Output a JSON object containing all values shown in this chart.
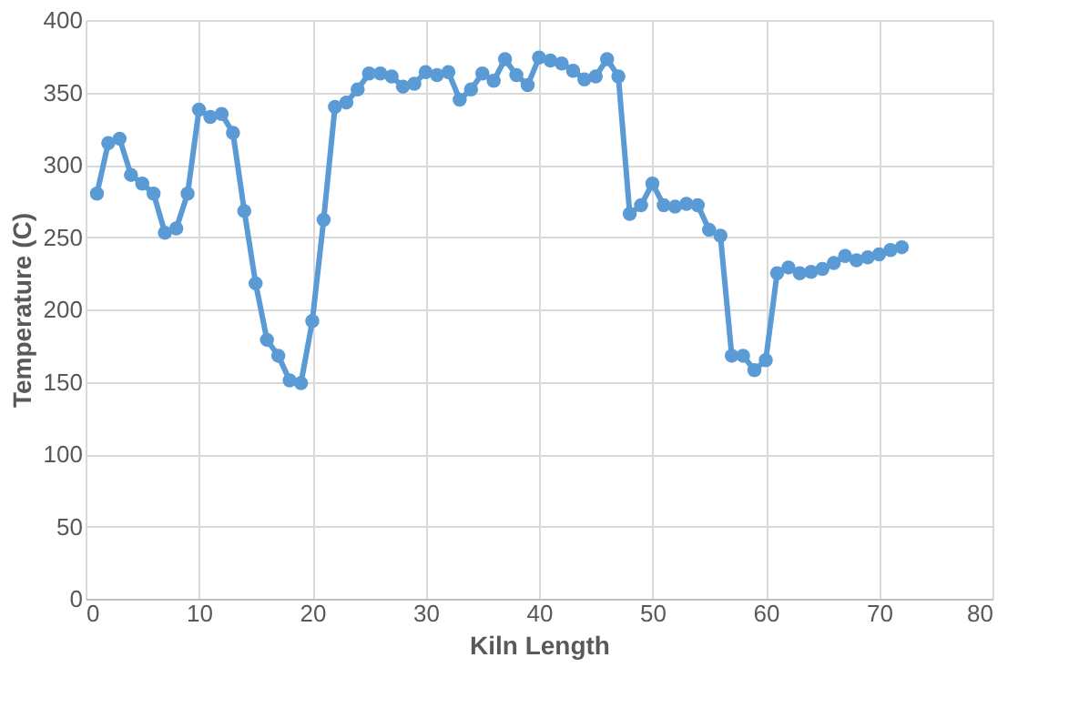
{
  "chart_data": {
    "type": "line",
    "xlabel": "Kiln Length",
    "ylabel": "Temperature  (C)",
    "x": [
      1,
      2,
      3,
      4,
      5,
      6,
      7,
      8,
      9,
      10,
      11,
      12,
      13,
      14,
      15,
      16,
      17,
      18,
      19,
      20,
      21,
      22,
      23,
      24,
      25,
      26,
      27,
      28,
      29,
      30,
      31,
      32,
      33,
      34,
      35,
      36,
      37,
      38,
      39,
      40,
      41,
      42,
      43,
      44,
      45,
      46,
      47,
      48,
      49,
      50,
      51,
      52,
      53,
      54,
      55,
      56,
      57,
      58,
      59,
      60,
      61,
      62,
      63,
      64,
      65,
      66,
      67,
      68,
      69,
      70,
      71,
      72
    ],
    "series": [
      {
        "color": "#5b9bd5",
        "values": [
          280,
          315,
          318,
          293,
          287,
          280,
          253,
          256,
          280,
          338,
          333,
          335,
          322,
          268,
          218,
          179,
          168,
          151,
          149,
          192,
          262,
          340,
          343,
          352,
          363,
          363,
          361,
          354,
          356,
          364,
          362,
          364,
          345,
          352,
          363,
          358,
          373,
          362,
          355,
          374,
          372,
          370,
          365,
          359,
          361,
          373,
          361,
          266,
          272,
          287,
          272,
          271,
          273,
          272,
          255,
          251,
          168,
          168,
          158,
          165,
          225,
          229,
          225,
          226,
          228,
          232,
          237,
          234,
          236,
          238,
          241,
          243
        ]
      }
    ],
    "xlim": [
      0,
      80
    ],
    "xticks": [
      0,
      10,
      20,
      30,
      40,
      50,
      60,
      70,
      80
    ],
    "ylim": [
      0,
      400
    ],
    "yticks": [
      0,
      50,
      100,
      150,
      200,
      250,
      300,
      350,
      400
    ],
    "grid": true,
    "marker": "circle",
    "line_style": "solid",
    "legend": false
  }
}
